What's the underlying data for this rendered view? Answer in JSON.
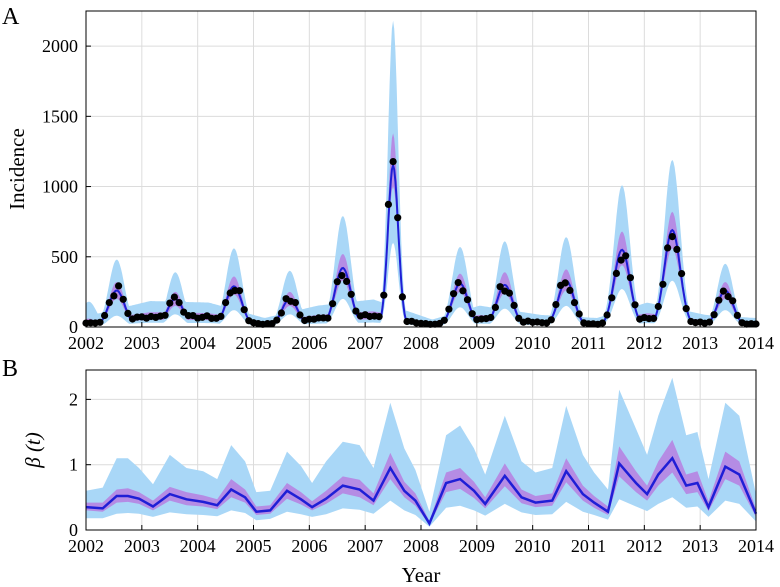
{
  "colors": {
    "outer_band": "#a9d7f7",
    "inner_band": "#b58ce4",
    "median_line": "#1f1fd6",
    "observed_points": "#000000",
    "grid": "#dcdcdc"
  },
  "chart_data": [
    {
      "panel_label": "A",
      "type": "line",
      "ylabel": "Incidence",
      "xlabel": "",
      "xlim": [
        2002,
        2014
      ],
      "ylim": [
        0,
        2250
      ],
      "grid": true,
      "xticks": [
        2002,
        2003,
        2004,
        2005,
        2006,
        2007,
        2008,
        2009,
        2010,
        2011,
        2012,
        2013,
        2014
      ],
      "yticks": [
        0,
        500,
        1000,
        1500,
        2000
      ],
      "xtick_labels": [
        "2002",
        "2003",
        "2004",
        "2005",
        "2006",
        "2007",
        "2008",
        "2009",
        "2010",
        "2011",
        "2012",
        "2013",
        "2014"
      ],
      "ytick_labels": [
        "0",
        "500",
        "1000",
        "1500",
        "2000"
      ],
      "peaks": [
        {
          "t": 2002.05,
          "obs": 30,
          "lo95": 5,
          "hi95": 180,
          "lo50": 20,
          "hi50": 60,
          "med": 35
        },
        {
          "t": 2002.55,
          "obs": 270,
          "lo95": 80,
          "hi95": 480,
          "lo50": 200,
          "hi50": 320,
          "med": 260
        },
        {
          "t": 2003.6,
          "obs": 215,
          "lo95": 90,
          "hi95": 390,
          "lo50": 150,
          "hi50": 250,
          "med": 200
        },
        {
          "t": 2004.65,
          "obs": 290,
          "lo95": 120,
          "hi95": 560,
          "lo50": 230,
          "hi50": 360,
          "med": 290
        },
        {
          "t": 2005.65,
          "obs": 200,
          "lo95": 90,
          "hi95": 400,
          "lo50": 150,
          "hi50": 250,
          "med": 200
        },
        {
          "t": 2006.6,
          "obs": 420,
          "lo95": 200,
          "hi95": 790,
          "lo50": 330,
          "hi50": 520,
          "med": 420
        },
        {
          "t": 2007.5,
          "obs": 1195,
          "lo95": 600,
          "hi95": 2180,
          "lo50": 1000,
          "hi50": 1380,
          "med": 1150
        },
        {
          "t": 2008.7,
          "obs": 320,
          "lo95": 140,
          "hi95": 570,
          "lo50": 250,
          "hi50": 380,
          "med": 310
        },
        {
          "t": 2009.5,
          "obs": 300,
          "lo95": 130,
          "hi95": 610,
          "lo50": 240,
          "hi50": 390,
          "med": 300
        },
        {
          "t": 2010.6,
          "obs": 340,
          "lo95": 150,
          "hi95": 640,
          "lo50": 260,
          "hi50": 410,
          "med": 330
        },
        {
          "t": 2011.6,
          "obs": 560,
          "lo95": 270,
          "hi95": 1010,
          "lo50": 440,
          "hi50": 680,
          "med": 550
        },
        {
          "t": 2012.5,
          "obs": 700,
          "lo95": 330,
          "hi95": 1190,
          "lo50": 560,
          "hi50": 820,
          "med": 690
        },
        {
          "t": 2013.45,
          "obs": 270,
          "lo95": 120,
          "hi95": 450,
          "lo50": 200,
          "hi50": 320,
          "med": 260
        }
      ],
      "troughs": [
        {
          "t": 2002.0,
          "v": 25
        },
        {
          "t": 2003.15,
          "v": 75
        },
        {
          "t": 2004.2,
          "v": 70
        },
        {
          "t": 2005.2,
          "v": 20
        },
        {
          "t": 2006.15,
          "v": 60
        },
        {
          "t": 2007.15,
          "v": 80
        },
        {
          "t": 2008.2,
          "v": 15
        },
        {
          "t": 2009.05,
          "v": 60
        },
        {
          "t": 2010.15,
          "v": 30
        },
        {
          "t": 2011.15,
          "v": 20
        },
        {
          "t": 2012.05,
          "v": 70
        },
        {
          "t": 2013.1,
          "v": 30
        },
        {
          "t": 2014.0,
          "v": 20
        }
      ]
    },
    {
      "panel_label": "B",
      "type": "line",
      "ylabel": "β (t)",
      "xlabel": "Year",
      "xlim": [
        2002,
        2014
      ],
      "ylim": [
        0,
        2.45
      ],
      "grid": true,
      "xticks": [
        2002,
        2003,
        2004,
        2005,
        2006,
        2007,
        2008,
        2009,
        2010,
        2011,
        2012,
        2013,
        2014
      ],
      "yticks": [
        0,
        1,
        2
      ],
      "xtick_labels": [
        "2002",
        "2003",
        "2004",
        "2005",
        "2006",
        "2007",
        "2008",
        "2009",
        "2010",
        "2011",
        "2012",
        "2013",
        "2014"
      ],
      "ytick_labels": [
        "0",
        "1",
        "2"
      ],
      "series": {
        "x": [
          2002.0,
          2002.3,
          2002.55,
          2002.75,
          2002.95,
          2003.2,
          2003.5,
          2003.8,
          2004.1,
          2004.35,
          2004.6,
          2004.85,
          2005.05,
          2005.3,
          2005.6,
          2005.85,
          2006.05,
          2006.3,
          2006.6,
          2006.9,
          2007.15,
          2007.45,
          2007.7,
          2007.9,
          2008.15,
          2008.45,
          2008.7,
          2008.95,
          2009.15,
          2009.5,
          2009.8,
          2010.05,
          2010.35,
          2010.6,
          2010.9,
          2011.1,
          2011.35,
          2011.55,
          2011.85,
          2012.05,
          2012.25,
          2012.5,
          2012.75,
          2012.95,
          2013.15,
          2013.45,
          2013.7,
          2014.0
        ],
        "median": [
          0.35,
          0.33,
          0.52,
          0.52,
          0.48,
          0.36,
          0.55,
          0.47,
          0.43,
          0.38,
          0.62,
          0.5,
          0.28,
          0.3,
          0.6,
          0.47,
          0.35,
          0.48,
          0.68,
          0.62,
          0.45,
          0.95,
          0.6,
          0.45,
          0.1,
          0.72,
          0.78,
          0.6,
          0.4,
          0.83,
          0.5,
          0.42,
          0.45,
          0.9,
          0.55,
          0.42,
          0.28,
          1.02,
          0.72,
          0.55,
          0.85,
          1.1,
          0.68,
          0.72,
          0.35,
          0.97,
          0.85,
          0.25
        ],
        "lo50": [
          0.3,
          0.28,
          0.42,
          0.43,
          0.4,
          0.3,
          0.45,
          0.38,
          0.36,
          0.32,
          0.5,
          0.42,
          0.23,
          0.25,
          0.48,
          0.39,
          0.3,
          0.4,
          0.56,
          0.5,
          0.38,
          0.78,
          0.5,
          0.37,
          0.08,
          0.58,
          0.63,
          0.49,
          0.33,
          0.67,
          0.41,
          0.35,
          0.37,
          0.73,
          0.45,
          0.34,
          0.23,
          0.82,
          0.58,
          0.45,
          0.68,
          0.88,
          0.55,
          0.58,
          0.29,
          0.78,
          0.68,
          0.2
        ],
        "hi50": [
          0.42,
          0.42,
          0.62,
          0.64,
          0.58,
          0.45,
          0.66,
          0.58,
          0.53,
          0.47,
          0.78,
          0.62,
          0.36,
          0.38,
          0.72,
          0.58,
          0.44,
          0.6,
          0.82,
          0.77,
          0.56,
          1.18,
          0.74,
          0.56,
          0.14,
          0.88,
          0.95,
          0.74,
          0.5,
          1.02,
          0.62,
          0.52,
          0.56,
          1.1,
          0.68,
          0.52,
          0.36,
          1.28,
          0.9,
          0.68,
          1.05,
          1.38,
          0.85,
          0.9,
          0.44,
          1.2,
          1.05,
          0.32
        ],
        "lo95": [
          0.18,
          0.18,
          0.25,
          0.26,
          0.25,
          0.2,
          0.27,
          0.24,
          0.23,
          0.21,
          0.3,
          0.26,
          0.15,
          0.17,
          0.28,
          0.24,
          0.2,
          0.24,
          0.33,
          0.31,
          0.25,
          0.45,
          0.3,
          0.23,
          0.05,
          0.34,
          0.37,
          0.3,
          0.22,
          0.4,
          0.27,
          0.23,
          0.24,
          0.43,
          0.28,
          0.23,
          0.16,
          0.47,
          0.36,
          0.29,
          0.4,
          0.5,
          0.34,
          0.36,
          0.2,
          0.45,
          0.4,
          0.13
        ],
        "hi95": [
          0.6,
          0.65,
          1.1,
          1.1,
          0.95,
          0.7,
          1.15,
          0.95,
          0.9,
          0.78,
          1.3,
          1.05,
          0.58,
          0.6,
          1.2,
          0.98,
          0.72,
          1.05,
          1.35,
          1.3,
          0.95,
          1.95,
          1.25,
          0.92,
          0.28,
          1.45,
          1.6,
          1.25,
          0.85,
          1.75,
          1.05,
          0.88,
          0.95,
          1.9,
          1.15,
          0.88,
          0.62,
          2.15,
          1.55,
          1.15,
          1.75,
          2.33,
          1.45,
          1.5,
          0.78,
          1.95,
          1.75,
          0.55
        ]
      }
    }
  ]
}
